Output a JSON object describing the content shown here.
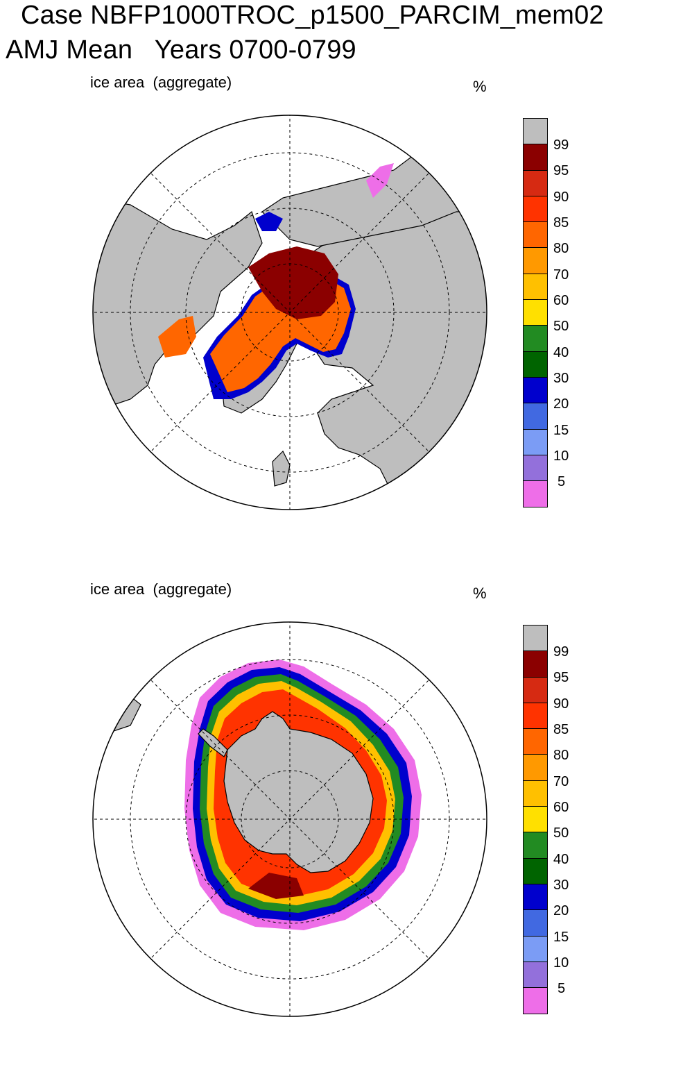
{
  "title": {
    "line1": "Case NBFP1000TROC_p1500_PARCIM_mem02",
    "line2": "AMJ Mean   Years 0700-0799"
  },
  "panels": [
    {
      "id": "north",
      "hemisphere": "Arctic",
      "variable_label": "ice area  (aggregate)",
      "unit": "%"
    },
    {
      "id": "south",
      "hemisphere": "Antarctic",
      "variable_label": "ice area  (aggregate)",
      "unit": "%"
    }
  ],
  "colorbar": {
    "tick_labels": [
      "99",
      "95",
      "90",
      "85",
      "80",
      "70",
      "60",
      "50",
      "40",
      "30",
      "20",
      "15",
      "10",
      "5"
    ],
    "colors": [
      "#bebebe",
      "#8b0000",
      "#d62a12",
      "#ff3300",
      "#ff6600",
      "#ff9900",
      "#ffc000",
      "#ffe000",
      "#228b22",
      "#006400",
      "#0000cd",
      "#4169e1",
      "#7b9cf5",
      "#9370db",
      "#ee6ee8"
    ]
  },
  "map_colors": {
    "land": "#bebebe",
    "ocean": "#ffffff",
    "grid": "#000000"
  }
}
